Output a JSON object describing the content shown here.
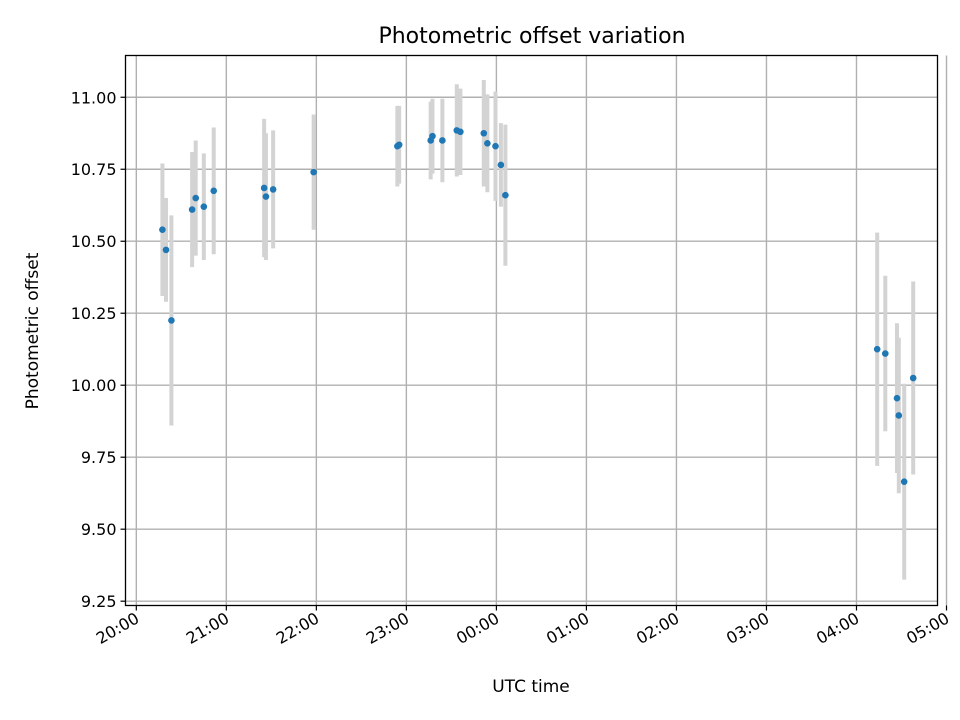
{
  "chart_data": {
    "type": "scatter",
    "title": "Photometric offset variation",
    "xlabel": "UTC time",
    "ylabel": "Photometric offset",
    "x_units": "hours since 20:00 UTC",
    "xlim": [
      -0.12,
      8.9
    ],
    "ylim": [
      9.235,
      11.145
    ],
    "grid": true,
    "x_ticks": [
      {
        "value": 0,
        "label": "20:00"
      },
      {
        "value": 1,
        "label": "21:00"
      },
      {
        "value": 2,
        "label": "22:00"
      },
      {
        "value": 3,
        "label": "23:00"
      },
      {
        "value": 4,
        "label": "00:00"
      },
      {
        "value": 5,
        "label": "01:00"
      },
      {
        "value": 6,
        "label": "02:00"
      },
      {
        "value": 7,
        "label": "03:00"
      },
      {
        "value": 8,
        "label": "04:00"
      },
      {
        "value": 9,
        "label": "05:00"
      }
    ],
    "y_ticks": [
      {
        "value": 9.25,
        "label": "9.25"
      },
      {
        "value": 9.5,
        "label": "9.50"
      },
      {
        "value": 9.75,
        "label": "9.75"
      },
      {
        "value": 10.0,
        "label": "10.00"
      },
      {
        "value": 10.25,
        "label": "10.25"
      },
      {
        "value": 10.5,
        "label": "10.50"
      },
      {
        "value": 10.75,
        "label": "10.75"
      },
      {
        "value": 11.0,
        "label": "11.00"
      }
    ],
    "colors": {
      "point": "#1f77b4",
      "errorbar": "#d3d3d3"
    },
    "points": [
      {
        "x": 0.29,
        "y": 10.54,
        "err": 0.23
      },
      {
        "x": 0.33,
        "y": 10.47,
        "err": 0.18
      },
      {
        "x": 0.39,
        "y": 10.225,
        "err": 0.365
      },
      {
        "x": 0.62,
        "y": 10.61,
        "err": 0.2
      },
      {
        "x": 0.66,
        "y": 10.65,
        "err": 0.2
      },
      {
        "x": 0.75,
        "y": 10.62,
        "err": 0.185
      },
      {
        "x": 0.86,
        "y": 10.675,
        "err": 0.22
      },
      {
        "x": 1.42,
        "y": 10.685,
        "err": 0.24
      },
      {
        "x": 1.44,
        "y": 10.655,
        "err": 0.22
      },
      {
        "x": 1.52,
        "y": 10.68,
        "err": 0.205
      },
      {
        "x": 1.97,
        "y": 10.74,
        "err": 0.2
      },
      {
        "x": 2.9,
        "y": 10.83,
        "err": 0.14
      },
      {
        "x": 2.92,
        "y": 10.835,
        "err": 0.135
      },
      {
        "x": 3.27,
        "y": 10.85,
        "err": 0.135
      },
      {
        "x": 3.29,
        "y": 10.865,
        "err": 0.13
      },
      {
        "x": 3.4,
        "y": 10.85,
        "err": 0.145
      },
      {
        "x": 3.56,
        "y": 10.885,
        "err": 0.16
      },
      {
        "x": 3.6,
        "y": 10.88,
        "err": 0.15
      },
      {
        "x": 3.86,
        "y": 10.875,
        "err": 0.185
      },
      {
        "x": 3.9,
        "y": 10.84,
        "err": 0.17
      },
      {
        "x": 3.99,
        "y": 10.83,
        "err": 0.19
      },
      {
        "x": 4.05,
        "y": 10.765,
        "err": 0.145
      },
      {
        "x": 4.1,
        "y": 10.66,
        "err": 0.245
      },
      {
        "x": 8.23,
        "y": 10.125,
        "err": 0.405
      },
      {
        "x": 8.32,
        "y": 10.11,
        "err": 0.27
      },
      {
        "x": 8.45,
        "y": 9.955,
        "err": 0.26
      },
      {
        "x": 8.47,
        "y": 9.895,
        "err": 0.27
      },
      {
        "x": 8.53,
        "y": 9.665,
        "err": 0.34
      },
      {
        "x": 8.63,
        "y": 10.025,
        "err": 0.335
      }
    ]
  }
}
